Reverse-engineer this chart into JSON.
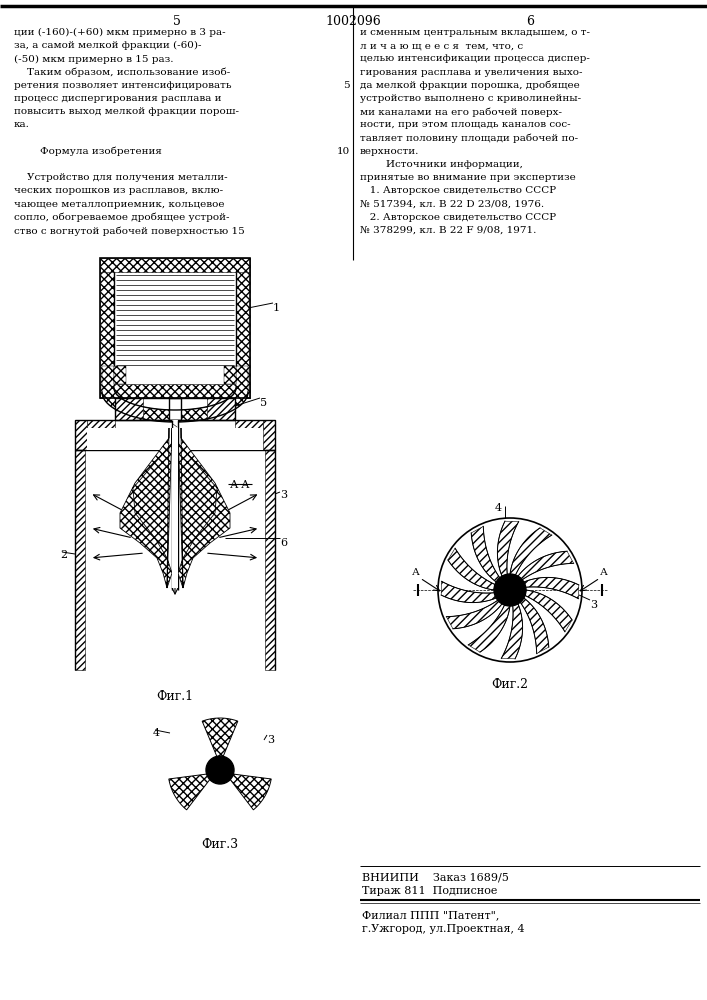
{
  "page_number_left": "5",
  "page_number_center": "1002096",
  "page_number_right": "6",
  "background_color": "#ffffff",
  "left_column_lines": [
    "ции (-160)-(+60) мкм примерно в 3 ра-",
    "за, а самой мелкой фракции (-60)-",
    "(-50) мкм примерно в 15 раз.",
    "    Таким образом, использование изоб-",
    "ретения позволяет интенсифицировать",
    "процесс диспергирования расплава и",
    "повысить выход мелкой фракции порош-",
    "ка.",
    "",
    "        Формула изобретения",
    "",
    "    Устройство для получения металли-",
    "ческих порошков из расплавов, вклю-",
    "чающее металлоприемник, кольцевое",
    "сопло, обогреваемое дробящее устрой-",
    "ство с вогнутой рабочей поверхностью 15"
  ],
  "right_column_lines": [
    "и сменным центральным вкладышем, о т-",
    "л и ч а ю щ е е с я  тем, что, с",
    "целью интенсификации процесса диспер-",
    "гирования расплава и увеличения выхо-",
    "да мелкой фракции порошка, дробящее",
    "устройство выполнено с криволинейны-",
    "ми каналами на его рабочей поверх-",
    "ности, при этом площадь каналов сос-",
    "тавляет половину площади рабочей по-",
    "верхности.",
    "        Источники информации,",
    "принятые во внимание при экспертизе",
    "   1. Авторское свидетельство СССР",
    "№ 517394, кл. В 22 D 23/08, 1976.",
    "   2. Авторское свидетельство СССР",
    "№ 378299, кл. В 22 F 9/08, 1971."
  ],
  "line_numbers": {
    "5": 4,
    "10": 9
  },
  "fig1_label": "Фиг.1",
  "fig2_label": "Фиг.2",
  "fig3_label": "Фиг.3",
  "aa_label": "А-А",
  "vniipbi_lines": [
    "ВНИИПИ    Заказ 1689/5",
    "Тираж 811  Подписное"
  ],
  "filial_lines": [
    "Филиал ППП \"Патент\",",
    "г.Ужгород, ул.Проектная, 4"
  ]
}
